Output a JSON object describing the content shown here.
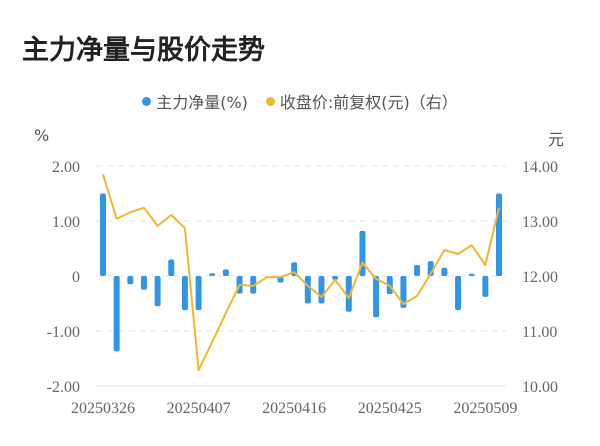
{
  "header": {
    "title": "主力净量与股价走势"
  },
  "legend": [
    {
      "label": "主力净量(%)",
      "color": "#3196e8"
    },
    {
      "label": "收盘价:前复权(元)（右）",
      "color": "#f2b630"
    }
  ],
  "axes": {
    "left_unit": "%",
    "right_unit": "元",
    "left_ticks": [
      "2.00",
      "1.00",
      "0",
      "-1.00",
      "-2.00"
    ],
    "right_ticks": [
      "14.00",
      "13.00",
      "12.00",
      "11.00",
      "10.00"
    ],
    "x_ticks": [
      "20250326",
      "20250407",
      "20250416",
      "20250425",
      "20250509"
    ]
  },
  "chart_data": {
    "type": "bar+line",
    "title": "主力净量与股价走势",
    "x": [
      "20250326",
      "20250327",
      "20250328",
      "20250331",
      "20250401",
      "20250402",
      "20250403",
      "20250407",
      "20250408",
      "20250409",
      "20250410",
      "20250411",
      "20250414",
      "20250415",
      "20250416",
      "20250417",
      "20250418",
      "20250421",
      "20250422",
      "20250423",
      "20250424",
      "20250425",
      "20250428",
      "20250429",
      "20250430",
      "20250506",
      "20250507",
      "20250508",
      "20250509",
      "20250512"
    ],
    "series": [
      {
        "name": "主力净量(%)",
        "type": "bar",
        "axis": "left",
        "color": "#3196e8",
        "values": [
          1.5,
          -1.37,
          -0.15,
          -0.25,
          -0.55,
          0.3,
          -0.62,
          -0.62,
          0.05,
          0.12,
          -0.32,
          -0.32,
          0.0,
          -0.12,
          0.25,
          -0.5,
          -0.5,
          -0.07,
          -0.65,
          0.82,
          -0.75,
          -0.33,
          -0.58,
          0.2,
          0.27,
          0.15,
          -0.62,
          0.04,
          -0.38,
          1.5
        ]
      },
      {
        "name": "收盘价:前复权(元)（右）",
        "type": "line",
        "axis": "right",
        "color": "#f2b630",
        "values": [
          13.85,
          13.04,
          13.16,
          13.24,
          12.91,
          13.11,
          12.87,
          10.29,
          10.8,
          11.33,
          11.84,
          11.82,
          11.98,
          11.98,
          12.07,
          11.82,
          11.62,
          11.93,
          11.6,
          12.24,
          11.95,
          11.82,
          11.49,
          11.64,
          12.04,
          12.47,
          12.4,
          12.56,
          12.2,
          13.24
        ]
      }
    ],
    "ylabel_left": "%",
    "ylabel_right": "元",
    "ylim_left": [
      -2,
      2
    ],
    "ylim_right": [
      10,
      14
    ],
    "x_tick_labels": [
      "20250326",
      "20250407",
      "20250416",
      "20250425",
      "20250509"
    ],
    "grid": "horizontal dashed",
    "legend_position": "top"
  }
}
